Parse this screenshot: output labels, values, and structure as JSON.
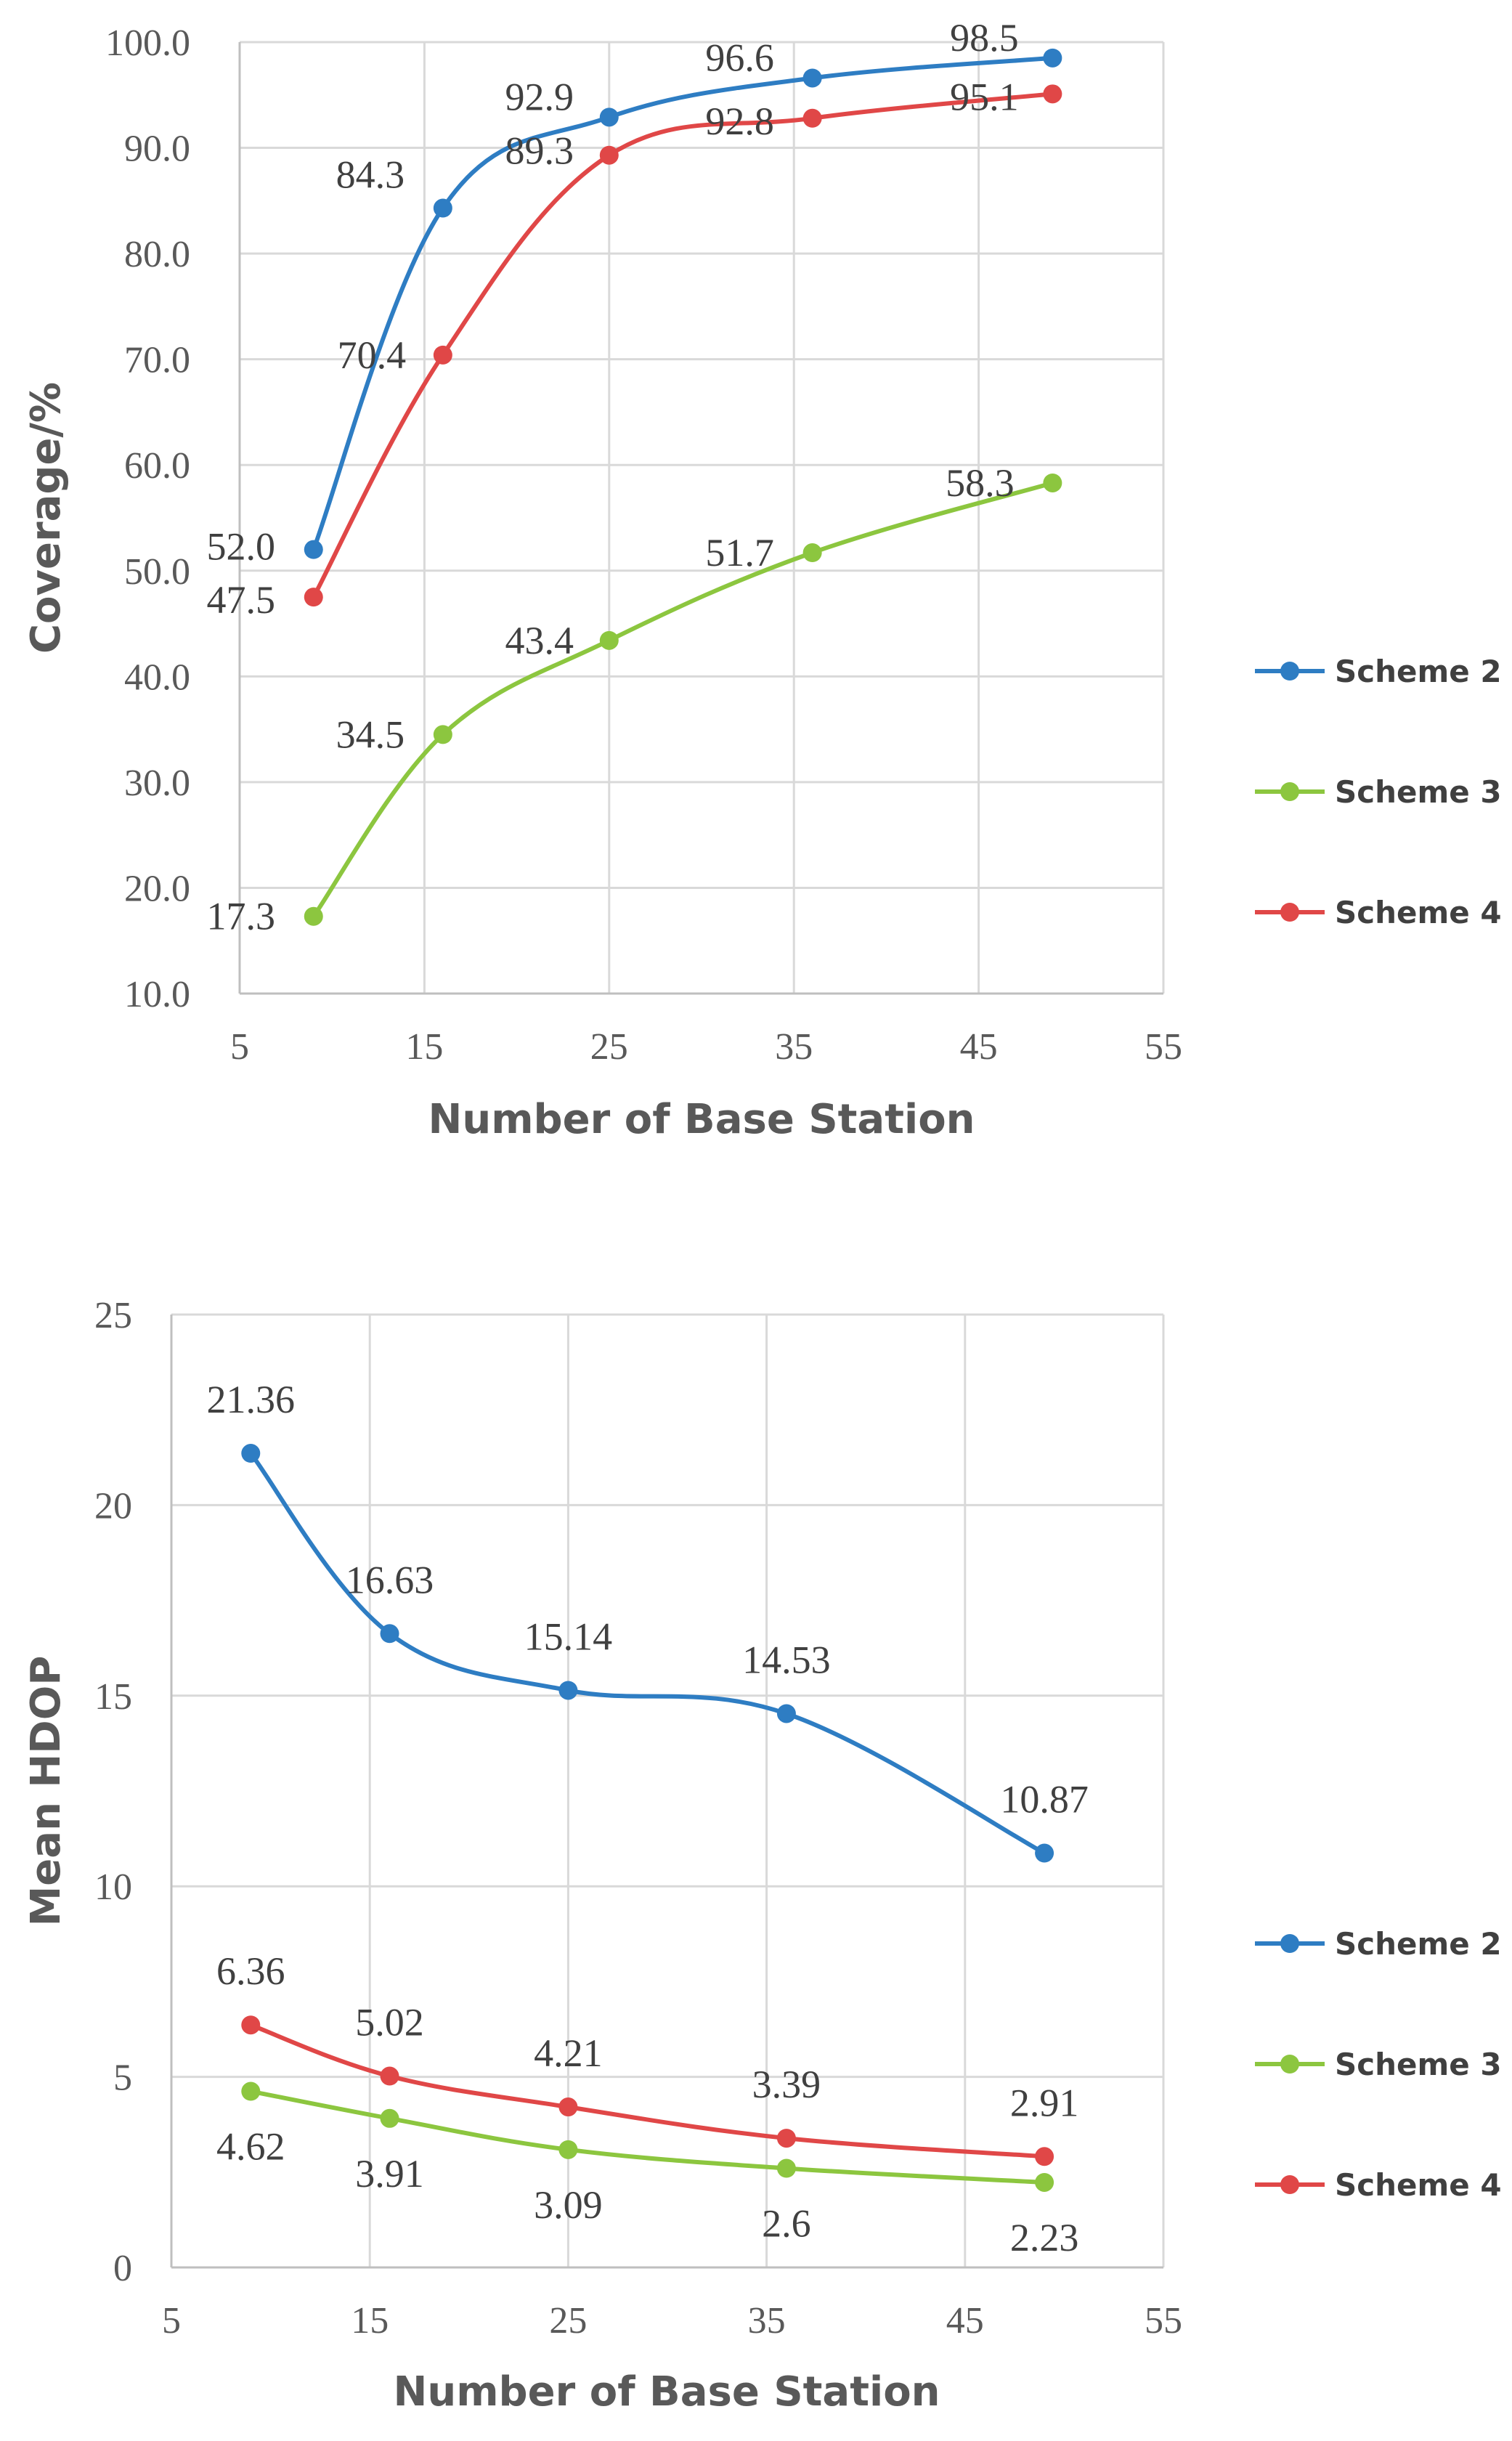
{
  "colors": {
    "scheme2": "#2e7dc3",
    "scheme3": "#8cc63f",
    "scheme4": "#e04747"
  },
  "chart_data": [
    {
      "type": "line",
      "title": "",
      "xlabel": "Number of Base Station",
      "ylabel": "Coverage/%",
      "xlim": [
        5,
        55
      ],
      "ylim": [
        10,
        100
      ],
      "xticks": [
        5,
        15,
        25,
        35,
        45,
        55
      ],
      "yticks": [
        10,
        20,
        30,
        40,
        50,
        60,
        70,
        80,
        90,
        100
      ],
      "xtick_labels": [
        "5",
        "15",
        "25",
        "35",
        "45",
        "55"
      ],
      "ytick_labels": [
        "10.0",
        "20.0",
        "30.0",
        "40.0",
        "50.0",
        "60.0",
        "70.0",
        "80.0",
        "90.0",
        "100.0"
      ],
      "x": [
        9,
        16,
        25,
        36,
        49
      ],
      "series": [
        {
          "name": "Scheme 2",
          "color_key": "scheme2",
          "values": [
            52.0,
            84.3,
            92.9,
            96.6,
            98.5
          ],
          "labels": [
            "52.0",
            "84.3",
            "92.9",
            "96.6",
            "98.5"
          ]
        },
        {
          "name": "Scheme 3",
          "color_key": "scheme3",
          "values": [
            17.3,
            34.5,
            43.4,
            51.7,
            58.3
          ],
          "labels": [
            "17.3",
            "34.5",
            "43.4",
            "51.7",
            "58.3"
          ]
        },
        {
          "name": "Scheme 4",
          "color_key": "scheme4",
          "values": [
            47.5,
            70.4,
            89.3,
            92.8,
            95.1
          ],
          "labels": [
            "47.5",
            "70.4",
            "89.3",
            "92.8",
            "95.1"
          ]
        }
      ],
      "legend": [
        "Scheme 2",
        "Scheme 3",
        "Scheme 4"
      ],
      "legend_position": "right",
      "grid": true
    },
    {
      "type": "line",
      "title": "",
      "xlabel": "Number of Base Station",
      "ylabel": "Mean HDOP",
      "xlim": [
        5,
        55
      ],
      "ylim": [
        0,
        25
      ],
      "xticks": [
        5,
        15,
        25,
        35,
        45,
        55
      ],
      "yticks": [
        0,
        5,
        10,
        15,
        20,
        25
      ],
      "xtick_labels": [
        "5",
        "15",
        "25",
        "35",
        "45",
        "55"
      ],
      "ytick_labels": [
        "0",
        "5",
        "10",
        "15",
        "20",
        "25"
      ],
      "x": [
        9,
        16,
        25,
        36,
        49
      ],
      "series": [
        {
          "name": "Scheme 2",
          "color_key": "scheme2",
          "values": [
            21.36,
            16.63,
            15.14,
            14.53,
            10.87
          ],
          "labels": [
            "21.36",
            "16.63",
            "15.14",
            "14.53",
            "10.87"
          ]
        },
        {
          "name": "Scheme 3",
          "color_key": "scheme3",
          "values": [
            4.62,
            3.91,
            3.09,
            2.6,
            2.23
          ],
          "labels": [
            "4.62",
            "3.91",
            "3.09",
            "2.6",
            "2.23"
          ]
        },
        {
          "name": "Scheme 4",
          "color_key": "scheme4",
          "values": [
            6.36,
            5.02,
            4.21,
            3.39,
            2.91
          ],
          "labels": [
            "6.36",
            "5.02",
            "4.21",
            "3.39",
            "2.91"
          ]
        }
      ],
      "legend": [
        "Scheme 2",
        "Scheme 3",
        "Scheme 4"
      ],
      "legend_position": "right",
      "grid": true
    }
  ]
}
